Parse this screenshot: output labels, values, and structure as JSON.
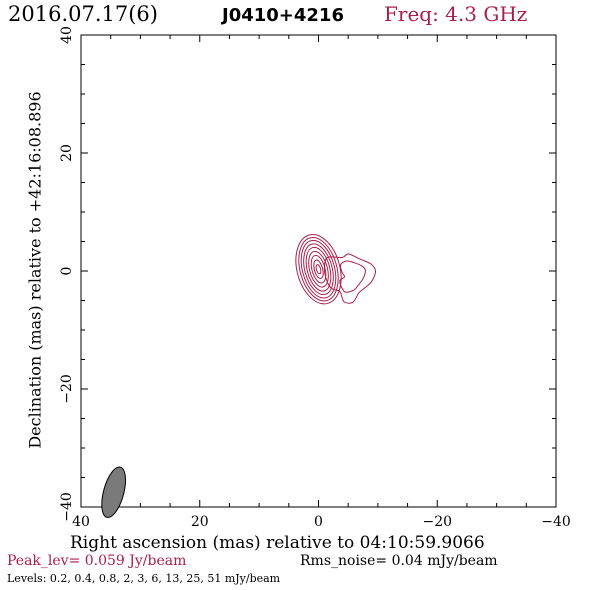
{
  "header": {
    "date": "2016.07.17(6)",
    "source": "J0410+4216",
    "freq": "Freq: 4.3 GHz"
  },
  "axes": {
    "xlabel": "Right ascension (mas) relative to 04:10:59.9066",
    "ylabel": "Declination (mas) relative to +42:16:08.896"
  },
  "footer": {
    "peak": "Peak_lev=  0.059 Jy/beam",
    "rms": "Rms_noise= 0.04 mJy/beam",
    "levels": "Levels: 0.2, 0.4, 0.8,   2,   3,   6,  13,  25,  51 mJy/beam"
  },
  "colors": {
    "contour": "#a8204a",
    "beam": "#7a7a7a"
  },
  "chart_data": {
    "type": "contour",
    "title": "J0410+4216",
    "xlabel": "Right ascension (mas) relative to 04:10:59.9066",
    "ylabel": "Declination (mas) relative to +42:16:08.896",
    "xlim": [
      40,
      -40
    ],
    "ylim": [
      -40,
      40
    ],
    "xticks": [
      40,
      20,
      0,
      -20,
      -40
    ],
    "yticks": [
      -40,
      -20,
      0,
      20,
      40
    ],
    "xtick_labels": [
      "40",
      "20",
      "0",
      "−20",
      "−40"
    ],
    "ytick_labels": [
      "−40",
      "−20",
      "0",
      "20",
      "40"
    ],
    "levels_mJy": [
      0.2,
      0.4,
      0.8,
      2,
      3,
      6,
      13,
      25,
      51
    ],
    "peak_Jy_per_beam": 0.059,
    "rms_mJy_per_beam": 0.04,
    "core": {
      "x": 0.0,
      "y": 0.3
    },
    "core_contours": [
      {
        "rx": 3.6,
        "ry": 6.0,
        "angle": -15
      },
      {
        "rx": 3.1,
        "ry": 5.5,
        "angle": -15
      },
      {
        "rx": 2.7,
        "ry": 5.0,
        "angle": -15
      },
      {
        "rx": 2.3,
        "ry": 4.4,
        "angle": -15
      },
      {
        "rx": 1.9,
        "ry": 3.8,
        "angle": -15
      },
      {
        "rx": 1.5,
        "ry": 3.1,
        "angle": -15
      },
      {
        "rx": 1.1,
        "ry": 2.4,
        "angle": -15
      },
      {
        "rx": 0.7,
        "ry": 1.6,
        "angle": -15
      },
      {
        "rx": 0.35,
        "ry": 0.8,
        "angle": -15
      }
    ],
    "jet_outer": [
      [
        -1.5,
        2.3
      ],
      [
        -4.0,
        2.3
      ],
      [
        -5.0,
        2.9
      ],
      [
        -6.8,
        2.1
      ],
      [
        -8.8,
        1.2
      ],
      [
        -9.6,
        0.0
      ],
      [
        -9.0,
        -1.7
      ],
      [
        -8.0,
        -2.7
      ],
      [
        -6.8,
        -3.7
      ],
      [
        -5.8,
        -5.3
      ],
      [
        -4.3,
        -5.2
      ],
      [
        -3.6,
        -3.5
      ],
      [
        -2.5,
        -3.1
      ],
      [
        -1.8,
        -2.5
      ],
      [
        -1.2,
        -1.0
      ],
      [
        -1.0,
        0.5
      ]
    ],
    "jet_inner": [
      [
        -3.7,
        1.0
      ],
      [
        -4.7,
        1.7
      ],
      [
        -6.0,
        1.4
      ],
      [
        -7.4,
        0.8
      ],
      [
        -7.9,
        0.0
      ],
      [
        -7.5,
        -1.3
      ],
      [
        -6.7,
        -2.4
      ],
      [
        -6.0,
        -3.2
      ],
      [
        -4.6,
        -3.6
      ],
      [
        -3.9,
        -2.8
      ],
      [
        -3.6,
        -1.6
      ],
      [
        -4.4,
        -1.0
      ],
      [
        -4.0,
        -0.3
      ]
    ],
    "beam": {
      "x": 34.5,
      "y": -37.5,
      "major": 4.4,
      "minor": 1.7,
      "angle": 15
    }
  }
}
